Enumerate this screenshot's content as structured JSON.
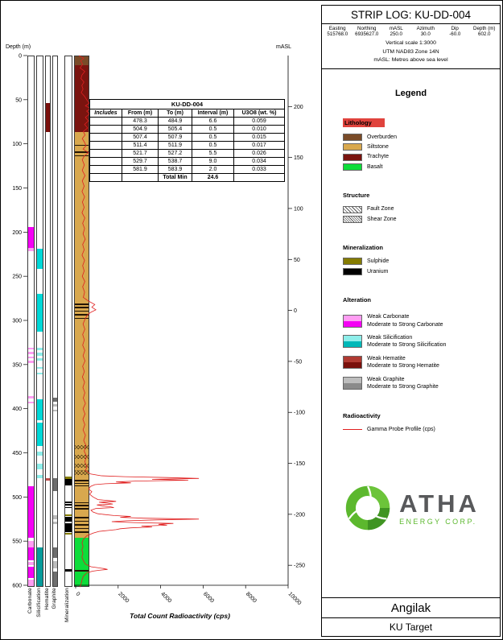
{
  "right_panel": {
    "title": "STRIP LOG: KU-DD-004",
    "coords": [
      {
        "label": "Easting",
        "value": "515768.0"
      },
      {
        "label": "Northing",
        "value": "6935627.0"
      },
      {
        "label": "mASL",
        "value": "250.0"
      },
      {
        "label": "Azimuth",
        "value": "30.0"
      },
      {
        "label": "Dip",
        "value": "-60.0"
      },
      {
        "label": "Depth (m)",
        "value": "602.0"
      }
    ],
    "scale_lines": [
      "Vertical scale 1:3000",
      "UTM NAD83 Zone 14N",
      "mASL: Metres above sea level"
    ],
    "legend": {
      "heading": "Legend",
      "sections": [
        {
          "heading": "Lithology",
          "highlight": true,
          "items": [
            {
              "label": "Overburden",
              "color": "#7a4b28"
            },
            {
              "label": "Siltstone",
              "color": "#d8a84e"
            },
            {
              "label": "Trachyte",
              "color": "#7a140f"
            },
            {
              "label": "Basalt",
              "color": "#0ddd3a"
            }
          ]
        },
        {
          "heading": "Structure",
          "items": [
            {
              "label": "Fault Zone",
              "pattern": "diag"
            },
            {
              "label": "Shear Zone",
              "pattern": "grid"
            }
          ]
        },
        {
          "heading": "Mineralization",
          "items": [
            {
              "label": "Sulphide",
              "color": "#857c00"
            },
            {
              "label": "Uranium",
              "color": "#000000"
            }
          ]
        },
        {
          "heading": "Alteration",
          "items2": [
            {
              "weak": "Weak Carbonate",
              "strong": "Moderate to Strong Carbonate",
              "weak_color": "#ff9df3",
              "strong_color": "#f400f4"
            },
            {
              "weak": "Weak Silicification",
              "strong": "Moderate to Strong Silicification",
              "weak_color": "#8eeeea",
              "strong_color": "#00b8b8"
            },
            {
              "weak": "Weak Hematite",
              "strong": "Moderate to Strong Hematite",
              "weak_color": "#b03a32",
              "strong_color": "#7a100c"
            },
            {
              "weak": "Weak Graphite",
              "strong": "Moderate to Strong Graphite",
              "weak_color": "#bdbdbd",
              "strong_color": "#8a8a8a"
            }
          ]
        },
        {
          "heading": "Radioactivity",
          "items": [
            {
              "label": "Gamma Probe Profile (cps)",
              "line_color": "#e01f1f"
            }
          ]
        }
      ]
    },
    "logo": {
      "brand": "ATHA",
      "sub": "ENERGY CORP.",
      "color": "#5cb82e"
    },
    "footer": {
      "line1": "Angilak",
      "line2": "KU Target"
    }
  },
  "table": {
    "title": "KU-DD-004",
    "headers": [
      "Includes",
      "From (m)",
      "To (m)",
      "Interval (m)",
      "U3O8 (wt. %)"
    ],
    "rows": [
      [
        "478.3",
        "484.9",
        "6.6",
        "0.059"
      ],
      [
        "504.9",
        "505.4",
        "0.5",
        "0.010"
      ],
      [
        "507.4",
        "507.9",
        "0.5",
        "0.015"
      ],
      [
        "511.4",
        "511.9",
        "0.5",
        "0.017"
      ],
      [
        "521.7",
        "527.2",
        "5.5",
        "0.026"
      ],
      [
        "529.7",
        "538.7",
        "9.0",
        "0.034"
      ],
      [
        "581.9",
        "583.9",
        "2.0",
        "0.033"
      ]
    ],
    "total_label": "Total Min",
    "total_value": "24.6"
  },
  "chart_data": {
    "type": "strip-log",
    "title": "KU-DD-004",
    "depth_axis": {
      "label": "Depth (m)",
      "min": 0,
      "max": 602,
      "ticks": [
        0,
        50,
        100,
        150,
        200,
        250,
        300,
        350,
        400,
        450,
        500,
        550,
        600
      ]
    },
    "masl_axis": {
      "label": "mASL",
      "collar": 250,
      "dip_cos": 0.866,
      "ticks": [
        200,
        150,
        100,
        50,
        0,
        -50,
        -100,
        -150,
        -200,
        -250
      ]
    },
    "gamma_axis": {
      "label": "Total Count Radioactivity (cps)",
      "min": 0,
      "max": 10000,
      "ticks": [
        0,
        2000,
        4000,
        6000,
        8000,
        10000
      ]
    },
    "strip_labels": [
      "Carbonate",
      "Silicification",
      "Hematite",
      "Graphite",
      "Mineralization"
    ],
    "colors": {
      "Overburden": "#7a4b28",
      "Siltstone": "#d8a84e",
      "Trachyte": "#7a140f",
      "Basalt": "#0ddd3a",
      "carbonate_weak": "#ff9df3",
      "carbonate_strong": "#f400f4",
      "silicification_weak": "#8eeeea",
      "silicification_strong": "#00d8d8",
      "silicification_mod": "#069a9a",
      "hematite_weak": "#c0504d",
      "hematite_strong": "#7a100c",
      "graphite_weak": "#bdbdbd",
      "graphite_strong": "#6e6e6e",
      "sulphide": "#857c00",
      "uranium": "#000000",
      "gamma": "#e01f1f"
    },
    "lithology": [
      {
        "from": 0,
        "to": 10,
        "c": "Overburden"
      },
      {
        "from": 10,
        "to": 86,
        "c": "Trachyte"
      },
      {
        "from": 86,
        "to": 545,
        "c": "Siltstone"
      },
      {
        "from": 545,
        "to": 602,
        "c": "Basalt"
      }
    ],
    "bed_marks": [
      100,
      108,
      112,
      280,
      284,
      288,
      292,
      296,
      480,
      483,
      486,
      505,
      508,
      512,
      522,
      526,
      530,
      534,
      538,
      582
    ],
    "fault_zones": [
      {
        "from": 440,
        "to": 445
      },
      {
        "from": 451,
        "to": 456
      },
      {
        "from": 461,
        "to": 466
      },
      {
        "from": 469,
        "to": 474
      }
    ],
    "strips": {
      "carbonate": [
        {
          "from": 193,
          "to": 217,
          "c": "carbonate_strong"
        },
        {
          "from": 217,
          "to": 221,
          "c": "carbonate_weak"
        },
        {
          "from": 330,
          "to": 332,
          "c": "carbonate_weak"
        },
        {
          "from": 335,
          "to": 337,
          "c": "carbonate_weak"
        },
        {
          "from": 340,
          "to": 342,
          "c": "carbonate_weak"
        },
        {
          "from": 345,
          "to": 347,
          "c": "carbonate_weak"
        },
        {
          "from": 385,
          "to": 388,
          "c": "carbonate_weak"
        },
        {
          "from": 391,
          "to": 393,
          "c": "carbonate_weak"
        },
        {
          "from": 487,
          "to": 545,
          "c": "carbonate_strong"
        },
        {
          "from": 549,
          "to": 556,
          "c": "carbonate_weak"
        },
        {
          "from": 556,
          "to": 571,
          "c": "carbonate_strong"
        },
        {
          "from": 573,
          "to": 576,
          "c": "carbonate_weak"
        },
        {
          "from": 578,
          "to": 591,
          "c": "carbonate_strong"
        },
        {
          "from": 593,
          "to": 600,
          "c": "carbonate_weak"
        }
      ],
      "silicification": [
        {
          "from": 218,
          "to": 241,
          "c": "silicification_strong"
        },
        {
          "from": 269,
          "to": 312,
          "c": "silicification_strong"
        },
        {
          "from": 330,
          "to": 333,
          "c": "silicification_weak"
        },
        {
          "from": 336,
          "to": 339,
          "c": "silicification_weak"
        },
        {
          "from": 342,
          "to": 345,
          "c": "silicification_weak"
        },
        {
          "from": 352,
          "to": 354,
          "c": "silicification_weak"
        },
        {
          "from": 358,
          "to": 360,
          "c": "silicification_weak"
        },
        {
          "from": 388,
          "to": 412,
          "c": "silicification_strong"
        },
        {
          "from": 415,
          "to": 441,
          "c": "silicification_strong"
        },
        {
          "from": 448,
          "to": 452,
          "c": "silicification_weak"
        },
        {
          "from": 461,
          "to": 468,
          "c": "silicification_weak"
        },
        {
          "from": 474,
          "to": 478,
          "c": "silicification_weak"
        },
        {
          "from": 556,
          "to": 600,
          "c": "silicification_mod"
        }
      ],
      "hematite": [
        {
          "from": 53,
          "to": 86,
          "c": "hematite_strong"
        },
        {
          "from": 478,
          "to": 481,
          "c": "hematite_weak"
        }
      ],
      "graphite": [
        {
          "from": 387,
          "to": 391,
          "c": "graphite_strong"
        },
        {
          "from": 394,
          "to": 397,
          "c": "graphite_weak"
        },
        {
          "from": 400,
          "to": 402,
          "c": "graphite_weak"
        },
        {
          "from": 478,
          "to": 492,
          "c": "graphite_strong"
        },
        {
          "from": 520,
          "to": 524,
          "c": "graphite_weak"
        },
        {
          "from": 527,
          "to": 530,
          "c": "graphite_weak"
        },
        {
          "from": 556,
          "to": 568,
          "c": "graphite_strong"
        },
        {
          "from": 572,
          "to": 580,
          "c": "graphite_weak"
        },
        {
          "from": 584,
          "to": 600,
          "c": "graphite_strong"
        }
      ],
      "mineralization": [
        {
          "from": 476,
          "to": 479,
          "c": "sulphide"
        },
        {
          "from": 479,
          "to": 486,
          "c": "uranium"
        },
        {
          "from": 504,
          "to": 506,
          "c": "uranium"
        },
        {
          "from": 507,
          "to": 509,
          "c": "uranium"
        },
        {
          "from": 511,
          "to": 512,
          "c": "uranium"
        },
        {
          "from": 519,
          "to": 521,
          "c": "sulphide"
        },
        {
          "from": 522,
          "to": 527,
          "c": "uranium"
        },
        {
          "from": 529,
          "to": 539,
          "c": "uranium"
        },
        {
          "from": 540,
          "to": 542,
          "c": "sulphide"
        },
        {
          "from": 581,
          "to": 584,
          "c": "uranium"
        }
      ]
    },
    "gamma_profile": [
      [
        0,
        150
      ],
      [
        3,
        380
      ],
      [
        6,
        240
      ],
      [
        10,
        330
      ],
      [
        14,
        210
      ],
      [
        18,
        430
      ],
      [
        22,
        300
      ],
      [
        26,
        250
      ],
      [
        30,
        390
      ],
      [
        34,
        290
      ],
      [
        38,
        350
      ],
      [
        42,
        260
      ],
      [
        46,
        410
      ],
      [
        50,
        520
      ],
      [
        54,
        640
      ],
      [
        57,
        460
      ],
      [
        60,
        700
      ],
      [
        63,
        520
      ],
      [
        66,
        660
      ],
      [
        70,
        460
      ],
      [
        74,
        600
      ],
      [
        78,
        420
      ],
      [
        82,
        560
      ],
      [
        86,
        360
      ],
      [
        90,
        440
      ],
      [
        94,
        310
      ],
      [
        98,
        410
      ],
      [
        102,
        490
      ],
      [
        106,
        350
      ],
      [
        110,
        600
      ],
      [
        114,
        400
      ],
      [
        118,
        310
      ],
      [
        124,
        410
      ],
      [
        130,
        310
      ],
      [
        136,
        440
      ],
      [
        142,
        310
      ],
      [
        148,
        400
      ],
      [
        154,
        300
      ],
      [
        160,
        420
      ],
      [
        166,
        320
      ],
      [
        172,
        400
      ],
      [
        178,
        300
      ],
      [
        184,
        430
      ],
      [
        190,
        330
      ],
      [
        196,
        420
      ],
      [
        202,
        350
      ],
      [
        208,
        450
      ],
      [
        214,
        330
      ],
      [
        220,
        400
      ],
      [
        226,
        300
      ],
      [
        232,
        420
      ],
      [
        238,
        330
      ],
      [
        244,
        400
      ],
      [
        250,
        310
      ],
      [
        256,
        430
      ],
      [
        262,
        330
      ],
      [
        268,
        420
      ],
      [
        274,
        360
      ],
      [
        278,
        600
      ],
      [
        282,
        900
      ],
      [
        285,
        760
      ],
      [
        288,
        950
      ],
      [
        291,
        700
      ],
      [
        294,
        550
      ],
      [
        298,
        450
      ],
      [
        304,
        350
      ],
      [
        310,
        430
      ],
      [
        316,
        330
      ],
      [
        322,
        410
      ],
      [
        328,
        330
      ],
      [
        334,
        430
      ],
      [
        340,
        350
      ],
      [
        346,
        440
      ],
      [
        352,
        330
      ],
      [
        358,
        410
      ],
      [
        364,
        320
      ],
      [
        370,
        420
      ],
      [
        376,
        340
      ],
      [
        382,
        430
      ],
      [
        388,
        360
      ],
      [
        394,
        460
      ],
      [
        400,
        350
      ],
      [
        406,
        440
      ],
      [
        412,
        340
      ],
      [
        418,
        430
      ],
      [
        424,
        350
      ],
      [
        430,
        460
      ],
      [
        436,
        380
      ],
      [
        442,
        490
      ],
      [
        448,
        400
      ],
      [
        454,
        510
      ],
      [
        460,
        430
      ],
      [
        466,
        530
      ],
      [
        470,
        460
      ],
      [
        474,
        700
      ],
      [
        476,
        1200
      ],
      [
        477,
        2300
      ],
      [
        478,
        4300
      ],
      [
        479,
        5800
      ],
      [
        480,
        3600
      ],
      [
        481,
        5300
      ],
      [
        482,
        2800
      ],
      [
        483,
        1900
      ],
      [
        484,
        2600
      ],
      [
        485,
        1400
      ],
      [
        486,
        900
      ],
      [
        488,
        700
      ],
      [
        491,
        620
      ],
      [
        494,
        760
      ],
      [
        497,
        660
      ],
      [
        500,
        820
      ],
      [
        503,
        1050
      ],
      [
        504,
        1500
      ],
      [
        505,
        1900
      ],
      [
        506,
        1100
      ],
      [
        507,
        1500
      ],
      [
        508,
        1750
      ],
      [
        509,
        1000
      ],
      [
        510,
        1250
      ],
      [
        511,
        1600
      ],
      [
        512,
        1800
      ],
      [
        513,
        950
      ],
      [
        515,
        720
      ],
      [
        517,
        820
      ],
      [
        519,
        1050
      ],
      [
        521,
        1800
      ],
      [
        522,
        2600
      ],
      [
        523,
        2100
      ],
      [
        524,
        3200
      ],
      [
        525,
        5800
      ],
      [
        526,
        3800
      ],
      [
        527,
        2400
      ],
      [
        528,
        1700
      ],
      [
        529,
        2700
      ],
      [
        530,
        4600
      ],
      [
        531,
        3900
      ],
      [
        532,
        4300
      ],
      [
        533,
        3100
      ],
      [
        534,
        3600
      ],
      [
        535,
        2600
      ],
      [
        536,
        2100
      ],
      [
        537,
        1900
      ],
      [
        538,
        1500
      ],
      [
        539,
        1100
      ],
      [
        541,
        820
      ],
      [
        544,
        520
      ],
      [
        548,
        360
      ],
      [
        552,
        300
      ],
      [
        556,
        350
      ],
      [
        560,
        290
      ],
      [
        564,
        340
      ],
      [
        568,
        290
      ],
      [
        572,
        360
      ],
      [
        576,
        460
      ],
      [
        579,
        720
      ],
      [
        581,
        1300
      ],
      [
        582,
        1500
      ],
      [
        583,
        1100
      ],
      [
        584,
        800
      ],
      [
        586,
        520
      ],
      [
        590,
        360
      ],
      [
        594,
        300
      ],
      [
        598,
        260
      ],
      [
        602,
        200
      ]
    ]
  }
}
